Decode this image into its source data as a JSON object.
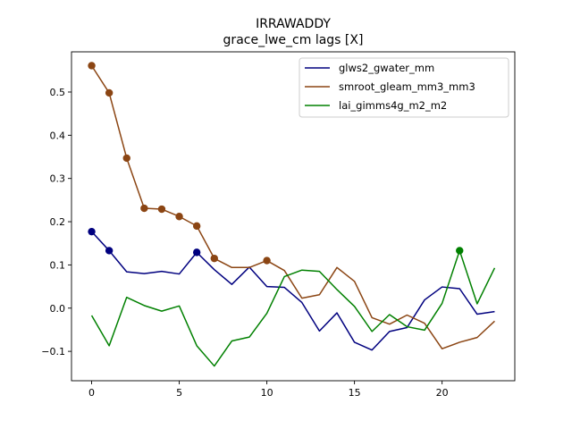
{
  "chart_data": {
    "type": "line",
    "title": "IRRAWADDY",
    "subtitle": "grace_lwe_cm lags [X]",
    "xlabel": "",
    "ylabel": "",
    "xlim": [
      -1.15,
      24.15
    ],
    "ylim": [
      -0.168,
      0.593
    ],
    "x_ticks": [
      0,
      5,
      10,
      15,
      20
    ],
    "y_ticks": [
      -0.1,
      0.0,
      0.1,
      0.2,
      0.3,
      0.4,
      0.5
    ],
    "y_tick_labels": [
      "−0.1",
      "0.0",
      "0.1",
      "0.2",
      "0.3",
      "0.4",
      "0.5"
    ],
    "x": [
      0,
      1,
      2,
      3,
      4,
      5,
      6,
      7,
      8,
      9,
      10,
      11,
      12,
      13,
      14,
      15,
      16,
      17,
      18,
      19,
      20,
      21,
      22,
      23
    ],
    "grid": false,
    "legend_position": "top-right",
    "series": [
      {
        "name": "glws2_gwater_mm",
        "color": "#00007f",
        "values": [
          0.177,
          0.133,
          0.084,
          0.08,
          0.085,
          0.079,
          0.129,
          0.089,
          0.055,
          0.095,
          0.05,
          0.048,
          0.013,
          -0.053,
          -0.011,
          -0.079,
          -0.097,
          -0.054,
          -0.045,
          0.019,
          0.049,
          0.045,
          -0.014,
          -0.008
        ],
        "markers": [
          0,
          1,
          6
        ]
      },
      {
        "name": "smroot_gleam_mm3_mm3",
        "color": "#8b4513",
        "values": [
          0.561,
          0.498,
          0.347,
          0.231,
          0.229,
          0.212,
          0.19,
          0.115,
          0.094,
          0.094,
          0.11,
          0.087,
          0.023,
          0.031,
          0.094,
          0.062,
          -0.022,
          -0.037,
          -0.016,
          -0.035,
          -0.094,
          -0.079,
          -0.068,
          -0.03
        ],
        "markers": [
          0,
          1,
          2,
          3,
          4,
          5,
          6,
          7,
          10
        ]
      },
      {
        "name": "lai_gimms4g_m2_m2",
        "color": "#008000",
        "values": [
          -0.017,
          -0.087,
          0.025,
          0.006,
          -0.007,
          0.005,
          -0.087,
          -0.134,
          -0.076,
          -0.067,
          -0.012,
          0.073,
          0.088,
          0.085,
          0.043,
          0.004,
          -0.054,
          -0.015,
          -0.043,
          -0.051,
          0.011,
          0.133,
          0.01,
          0.093
        ],
        "markers": [
          21
        ]
      }
    ]
  }
}
